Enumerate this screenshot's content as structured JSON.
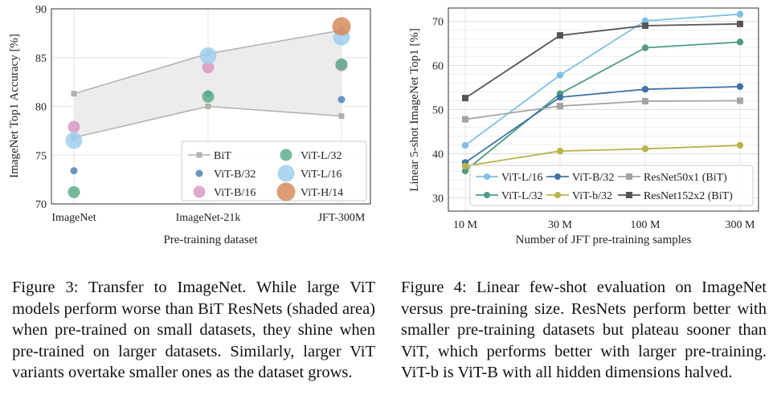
{
  "chart_data": [
    {
      "type": "scatter",
      "title": "",
      "xlabel": "Pre-training dataset",
      "ylabel": "ImageNet Top1 Accuracy [%]",
      "categories": [
        "ImageNet",
        "ImageNet-21k",
        "JFT-300M"
      ],
      "ylim": [
        70,
        90
      ],
      "yticks": [
        70,
        75,
        80,
        85,
        90
      ],
      "grid": true,
      "legend_position": "bottom-right",
      "shaded_area": "BiT",
      "series": [
        {
          "name": "BiT",
          "kind": "bit",
          "color": "#b0b0b0",
          "values": [
            [
              81.3,
              76.8
            ],
            [
              85.4,
              80.0
            ],
            [
              87.8,
              79.0
            ]
          ]
        },
        {
          "name": "ViT-B/32",
          "kind": "vit",
          "color": "#4f83b6",
          "size": 4.5,
          "values": [
            73.4,
            81.3,
            80.7
          ]
        },
        {
          "name": "ViT-B/16",
          "kind": "vit",
          "color": "#d89ac3",
          "size": 7.5,
          "values": [
            77.9,
            84.0,
            84.2
          ]
        },
        {
          "name": "ViT-L/32",
          "kind": "vit",
          "color": "#5eae8b",
          "size": 7.5,
          "values": [
            71.2,
            81.0,
            84.3
          ]
        },
        {
          "name": "ViT-L/16",
          "kind": "vit",
          "color": "#9fcff0",
          "size": 10.5,
          "values": [
            76.5,
            85.2,
            87.1
          ]
        },
        {
          "name": "ViT-H/14",
          "kind": "vit",
          "color": "#d68b5c",
          "size": 11.5,
          "values": [
            null,
            null,
            88.2
          ]
        }
      ]
    },
    {
      "type": "line",
      "title": "",
      "xlabel": "Number of JFT pre-training samples",
      "ylabel": "Linear 5-shot ImageNet Top1 [%]",
      "categories": [
        "10 M",
        "30 M",
        "100 M",
        "300 M"
      ],
      "ylim": [
        27,
        73
      ],
      "yticks": [
        30,
        40,
        50,
        60,
        70
      ],
      "grid": true,
      "legend_position": "bottom-right",
      "series": [
        {
          "name": "ViT-L/16",
          "color": "#7fbfe8",
          "marker": "circle",
          "values": [
            41.9,
            57.8,
            70.1,
            71.6
          ]
        },
        {
          "name": "ViT-L/32",
          "color": "#4f9e80",
          "marker": "circle",
          "values": [
            36.1,
            53.6,
            64.0,
            65.3
          ]
        },
        {
          "name": "ViT-B/32",
          "color": "#3f74a6",
          "marker": "circle",
          "values": [
            38.0,
            52.8,
            54.6,
            55.2
          ]
        },
        {
          "name": "ViT-b/32",
          "color": "#b9b44a",
          "marker": "circle",
          "values": [
            37.2,
            40.6,
            41.1,
            41.9
          ]
        },
        {
          "name": "ResNet50x1 (BiT)",
          "color": "#a4a4a4",
          "marker": "square",
          "values": [
            47.8,
            50.8,
            51.9,
            52.0
          ]
        },
        {
          "name": "ResNet152x2 (BiT)",
          "color": "#555555",
          "marker": "square",
          "values": [
            52.6,
            66.8,
            69.0,
            69.4
          ]
        }
      ]
    }
  ],
  "captions": {
    "figure3": "Figure 3: Transfer to ImageNet. While large ViT models perform worse than BiT ResNets (shaded area) when pre-trained on small datasets, they shine when pre-trained on larger datasets. Similarly, larger ViT variants overtake smaller ones as the dataset grows.",
    "figure4": "Figure 4: Linear few-shot evaluation on ImageNet versus pre-training size. ResNets perform better with smaller pre-training datasets but plateau sooner than ViT, which performs better with larger pre-training. ViT-b is ViT-B with all hidden dimensions halved."
  }
}
